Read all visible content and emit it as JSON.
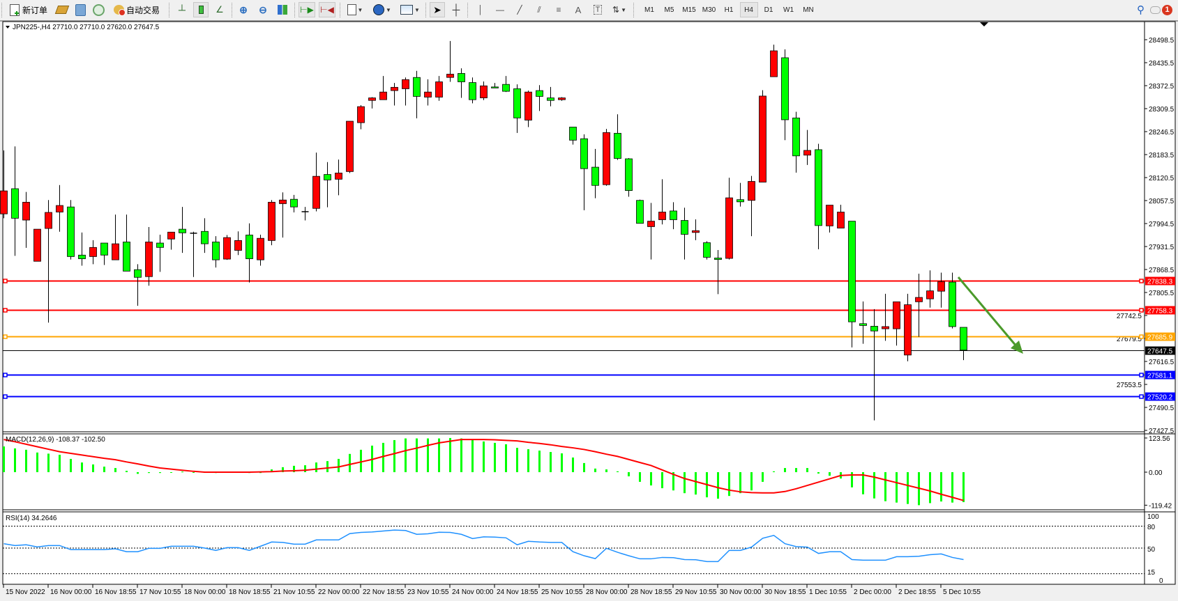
{
  "toolbar": {
    "new_order_label": "新订单",
    "auto_trading_label": "自动交易",
    "timeframes": [
      "M1",
      "M5",
      "M15",
      "M30",
      "H1",
      "H4",
      "D1",
      "W1",
      "MN"
    ],
    "active_timeframe": "H4",
    "drawing_tools": [
      "cursor",
      "crosshair",
      "vertical-line",
      "horizontal-line",
      "trend-line",
      "equidistant-channel",
      "fibonacci",
      "text",
      "text-label",
      "arrows"
    ],
    "text_tool_label": "A",
    "notification_count": "1"
  },
  "chart": {
    "header": "JPN225-,H4  27710.0 27710.0 27620.0 27647.5",
    "bull_color": "#ff0000",
    "bear_color": "#00ff00",
    "price_ticks": [
      "28498.5",
      "28435.5",
      "28372.5",
      "28309.5",
      "28246.5",
      "28183.5",
      "28120.5",
      "28057.5",
      "27994.5",
      "27931.5",
      "27868.5",
      "27805.5",
      "27742.5",
      "27679.5",
      "27616.5",
      "27553.5",
      "27490.5",
      "27427.5"
    ],
    "levels": [
      {
        "price": 27838.3,
        "label": "27838.3",
        "color": "#ff0000"
      },
      {
        "price": 27758.3,
        "label": "27758.3",
        "color": "#ff0000"
      },
      {
        "price": 27685.9,
        "label": "27685.9",
        "color": "#ffa500"
      },
      {
        "price": 27647.5,
        "label": "27647.5",
        "color": "#000000"
      },
      {
        "price": 27581.1,
        "label": "27581.1",
        "color": "#0000ff"
      },
      {
        "price": 27520.2,
        "label": "27520.2",
        "color": "#0000ff"
      }
    ],
    "arrow_color": "#4b9a2b",
    "candles": [
      [
        28021,
        28195,
        28009,
        28084
      ],
      [
        28090,
        28206,
        27906,
        28009
      ],
      [
        28004,
        28081,
        27928,
        28053
      ],
      [
        27891,
        27979,
        27891,
        27979
      ],
      [
        27981,
        28059,
        27723,
        28025
      ],
      [
        28026,
        28100,
        27972,
        28044
      ],
      [
        28040,
        28059,
        27896,
        27904
      ],
      [
        27908,
        27970,
        27879,
        27898
      ],
      [
        27904,
        27949,
        27883,
        27929
      ],
      [
        27941,
        27941,
        27881,
        27908
      ],
      [
        27895,
        28019,
        27895,
        27939
      ],
      [
        27944,
        28019,
        27864,
        27864
      ],
      [
        27868,
        27883,
        27769,
        27847
      ],
      [
        27849,
        27985,
        27824,
        27944
      ],
      [
        27941,
        27964,
        27862,
        27929
      ],
      [
        27952,
        27971,
        27923,
        27971
      ],
      [
        27979,
        28040,
        27914,
        27969
      ],
      [
        27968,
        27972,
        27848,
        27968
      ],
      [
        27973,
        28009,
        27914,
        27939
      ],
      [
        27944,
        27960,
        27874,
        27895
      ],
      [
        27897,
        27963,
        27895,
        27956
      ],
      [
        27921,
        27973,
        27908,
        27948
      ],
      [
        27963,
        27995,
        27833,
        27898
      ],
      [
        27895,
        27964,
        27879,
        27954
      ],
      [
        27948,
        28059,
        27935,
        28053
      ],
      [
        28049,
        28080,
        27956,
        28059
      ],
      [
        28061,
        28073,
        28025,
        28040
      ],
      [
        28027,
        28040,
        28003,
        28027
      ],
      [
        28036,
        28189,
        28028,
        28124
      ],
      [
        28129,
        28163,
        28039,
        28114
      ],
      [
        28116,
        28170,
        28072,
        28133
      ],
      [
        28137,
        28275,
        28133,
        28275
      ],
      [
        28271,
        28319,
        28253,
        28315
      ],
      [
        28332,
        28341,
        28310,
        28339
      ],
      [
        28334,
        28399,
        28334,
        28355
      ],
      [
        28359,
        28380,
        28318,
        28368
      ],
      [
        28364,
        28395,
        28318,
        28389
      ],
      [
        28395,
        28413,
        28283,
        28343
      ],
      [
        28341,
        28390,
        28318,
        28355
      ],
      [
        28341,
        28399,
        28331,
        28383
      ],
      [
        28395,
        28495,
        28383,
        28404
      ],
      [
        28406,
        28420,
        28339,
        28383
      ],
      [
        28381,
        28395,
        28324,
        28334
      ],
      [
        28339,
        28384,
        28333,
        28372
      ],
      [
        28369,
        28380,
        28368,
        28368
      ],
      [
        28376,
        28399,
        28355,
        28357
      ],
      [
        28364,
        28376,
        28243,
        28284
      ],
      [
        28278,
        28359,
        28259,
        28355
      ],
      [
        28359,
        28374,
        28303,
        28343
      ],
      [
        28339,
        28369,
        28316,
        28332
      ],
      [
        28334,
        28341,
        28331,
        28339
      ],
      [
        28259,
        28259,
        28211,
        28223
      ],
      [
        28227,
        28239,
        28031,
        28145
      ],
      [
        28149,
        28199,
        28064,
        28099
      ],
      [
        28101,
        28254,
        28098,
        28244
      ],
      [
        28242,
        28294,
        28169,
        28173
      ],
      [
        28172,
        28174,
        28068,
        28085
      ],
      [
        28058,
        28060,
        27995,
        27995
      ],
      [
        27986,
        28051,
        27896,
        28001
      ],
      [
        28005,
        28116,
        27992,
        28026
      ],
      [
        28029,
        28053,
        27979,
        28005
      ],
      [
        28003,
        28038,
        27896,
        27965
      ],
      [
        27970,
        28006,
        27949,
        27975
      ],
      [
        27942,
        27946,
        27896,
        27902
      ],
      [
        27900,
        27922,
        27801,
        27896
      ],
      [
        27899,
        28120,
        27896,
        28065
      ],
      [
        28060,
        28106,
        28041,
        28054
      ],
      [
        28058,
        28125,
        27960,
        28110
      ],
      [
        28108,
        28360,
        28108,
        28344
      ],
      [
        28397,
        28485,
        28397,
        28468
      ],
      [
        28449,
        28472,
        28223,
        28279
      ],
      [
        28284,
        28301,
        28134,
        28180
      ],
      [
        28182,
        28251,
        28155,
        28195
      ],
      [
        28197,
        28213,
        27924,
        27989
      ],
      [
        27988,
        28045,
        27970,
        28045
      ],
      [
        27982,
        28046,
        27982,
        28026
      ],
      [
        28001,
        28001,
        27655,
        27725
      ],
      [
        27720,
        27781,
        27665,
        27715
      ],
      [
        27713,
        27760,
        27455,
        27700
      ],
      [
        27706,
        27802,
        27673,
        27712
      ],
      [
        27706,
        27780,
        27660,
        27780
      ],
      [
        27634,
        27802,
        27617,
        27772
      ],
      [
        27780,
        27857,
        27684,
        27792
      ],
      [
        27788,
        27866,
        27764,
        27810
      ],
      [
        27809,
        27860,
        27764,
        27835
      ],
      [
        27834,
        27860,
        27707,
        27712
      ],
      [
        27710,
        27710,
        27620,
        27647.5
      ]
    ],
    "date_labels": [
      "15 Nov 2022",
      "16 Nov 00:00",
      "16 Nov 18:55",
      "17 Nov 10:55",
      "18 Nov 00:00",
      "18 Nov 18:55",
      "21 Nov 10:55",
      "22 Nov 00:00",
      "22 Nov 18:55",
      "23 Nov 10:55",
      "24 Nov 00:00",
      "24 Nov 18:55",
      "25 Nov 10:55",
      "28 Nov 00:00",
      "28 Nov 18:55",
      "29 Nov 10:55",
      "30 Nov 00:00",
      "30 Nov 18:55",
      "1 Dec 10:55",
      "2 Dec 00:00",
      "2 Dec 18:55",
      "5 Dec 10:55"
    ]
  },
  "macd": {
    "label": "MACD(12,26,9) -108.37 -102.50",
    "axis_labels": [
      "123.56",
      "0.00",
      "-119.42"
    ],
    "histogram_color": "#00ff00",
    "signal_color": "#ff0000",
    "histogram": [
      93,
      86,
      81,
      71,
      67,
      63,
      48,
      35,
      28,
      20,
      15,
      5,
      -6,
      -3,
      -3,
      -2,
      2,
      0,
      0,
      -3,
      0,
      0,
      -3,
      -3,
      10,
      18,
      23,
      25,
      35,
      40,
      48,
      66,
      81,
      96,
      106,
      116,
      122,
      122,
      122,
      122,
      123.56,
      122,
      116,
      111,
      106,
      101,
      88,
      83,
      78,
      73,
      68,
      53,
      33,
      13,
      10,
      3,
      -15,
      -35,
      -48,
      -58,
      -66,
      -76,
      -81,
      -91,
      -96,
      -86,
      -76,
      -66,
      -35,
      3,
      15,
      15,
      15,
      -5,
      -13,
      -23,
      -55,
      -80,
      -95,
      -105,
      -110,
      -115,
      -119.42,
      -112,
      -106,
      -110,
      -108.37
    ],
    "signal": [
      118,
      110,
      101,
      92,
      83,
      74,
      68,
      62,
      56,
      50,
      45,
      37,
      30,
      22,
      15,
      11,
      7,
      3,
      0,
      0,
      0,
      0,
      0,
      1,
      2,
      4,
      5,
      7,
      11,
      15,
      19,
      28,
      37,
      46,
      57,
      67,
      78,
      87,
      97,
      106,
      112,
      118,
      118,
      118,
      117,
      115,
      113,
      108,
      104,
      99,
      93,
      88,
      82,
      74,
      65,
      57,
      46,
      35,
      24,
      8,
      -8,
      -23,
      -34,
      -45,
      -56,
      -65,
      -71,
      -74,
      -75,
      -75,
      -70,
      -60,
      -48,
      -36,
      -24,
      -12,
      -10,
      -10,
      -18,
      -28,
      -38,
      -48,
      -58,
      -68,
      -80,
      -91,
      -102.5
    ]
  },
  "rsi": {
    "label": "RSI(14) 34.2646",
    "axis_labels": [
      "100",
      "80",
      "50",
      "15",
      "0"
    ],
    "levels": [
      80,
      50,
      15
    ],
    "line_color": "#1e90ff",
    "values": [
      56,
      53.5,
      54.5,
      51.6,
      53.5,
      53.5,
      47.8,
      47.8,
      47.8,
      47.8,
      49,
      45,
      45,
      49.7,
      49.7,
      52.5,
      52.5,
      52.5,
      50,
      46.8,
      50.6,
      50.6,
      46.8,
      52.5,
      58.3,
      57.7,
      55.4,
      55.4,
      61.2,
      61.2,
      61.2,
      69.8,
      71.4,
      72,
      73.3,
      74.6,
      74,
      68.8,
      69.5,
      71.7,
      71.4,
      68.8,
      63,
      65.3,
      65,
      64,
      54.5,
      59.3,
      58.3,
      57.7,
      57.7,
      45,
      39.5,
      35.6,
      49.7,
      44.2,
      39.5,
      35.3,
      35.3,
      37.2,
      36.9,
      34.3,
      34,
      31.5,
      31.5,
      46.8,
      46.8,
      51.3,
      63.4,
      67.3,
      56,
      52,
      51.3,
      42.7,
      45,
      45,
      34.3,
      33.4,
      33.4,
      33.4,
      38.2,
      38.2,
      38.8,
      41,
      42,
      37.2,
      34.2646
    ]
  }
}
